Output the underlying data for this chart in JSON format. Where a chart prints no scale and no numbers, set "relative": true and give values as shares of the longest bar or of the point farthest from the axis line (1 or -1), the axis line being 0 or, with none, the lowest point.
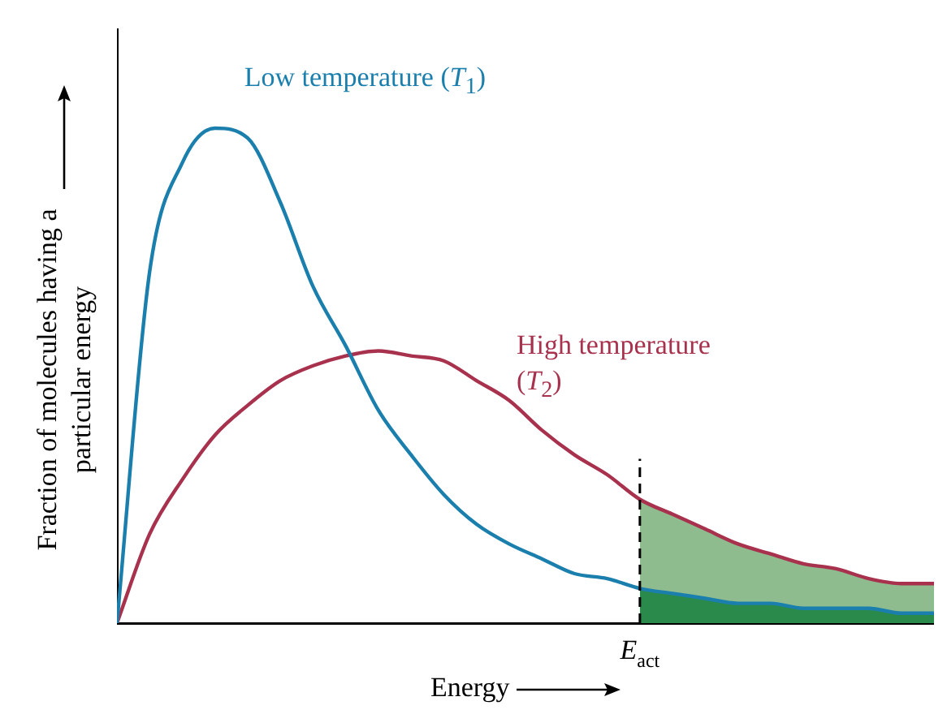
{
  "chart_data": {
    "type": "line",
    "relative": true,
    "xlabel": "Energy",
    "ylabel": "Fraction of molecules having a particular energy",
    "categories": [
      null,
      null,
      null,
      null,
      null,
      null,
      null,
      null,
      null,
      null,
      null,
      null,
      null,
      null,
      null,
      null,
      null,
      null,
      null,
      null,
      null,
      null,
      null,
      null,
      null,
      null
    ],
    "series": [
      {
        "name": "Low temperature (T$_{1}$)",
        "color": "#1b7fad",
        "values": [
          0,
          0.71,
          0.93,
          1,
          0.98,
          0.85,
          0.68,
          0.56,
          0.43,
          0.34,
          0.26,
          0.2,
          0.16,
          0.13,
          0.1,
          0.09,
          0.07,
          0.06,
          0.05,
          0.04,
          0.04,
          0.03,
          0.03,
          0.03,
          0.02,
          0.02
        ]
      },
      {
        "name": "High temperature (T$_{2}$)",
        "color": "#a8324e",
        "values": [
          0,
          0.18,
          0.29,
          0.38,
          0.44,
          0.49,
          0.52,
          0.54,
          0.55,
          0.54,
          0.53,
          0.49,
          0.45,
          0.39,
          0.34,
          0.3,
          0.25,
          0.22,
          0.19,
          0.16,
          0.14,
          0.12,
          0.11,
          0.09,
          0.08,
          0.08
        ]
      },
      {
        "type": "area",
        "color": "#2a8a4c",
        "values": [
          null,
          null,
          null,
          null,
          null,
          null,
          null,
          null,
          null,
          null,
          null,
          null,
          null,
          null,
          null,
          null,
          0.07,
          0.06,
          0.05,
          0.04,
          0.04,
          0.03,
          0.03,
          0.03,
          0.02,
          0.02
        ]
      },
      {
        "type": "area",
        "color": "#8fbc8f",
        "values": [
          null,
          null,
          null,
          null,
          null,
          null,
          null,
          null,
          null,
          null,
          null,
          null,
          null,
          null,
          null,
          null,
          0.25,
          0.22,
          0.19,
          0.16,
          0.14,
          0.12,
          0.11,
          0.09,
          0.08,
          0.08
        ]
      }
    ],
    "annotations": [
      "E$_{act}$"
    ],
    "legend": false,
    "grid": false,
    "marker": "none",
    "line_style": "solid"
  }
}
